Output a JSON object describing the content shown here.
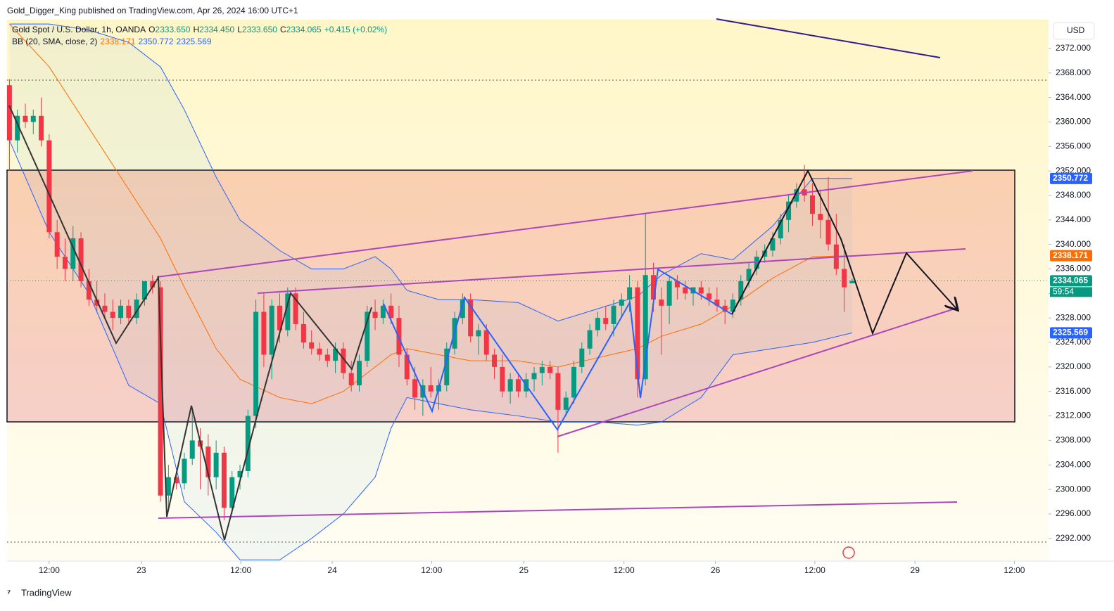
{
  "header": {
    "publisher": "Gold_Digger_King published on TradingView.com, Apr 26, 2024 16:00 UTC+1",
    "currency": "USD",
    "brand": "TradingView"
  },
  "chart_data": {
    "type": "candlestick",
    "title": "Gold Spot / U.S. Dollar, 1h, OANDA",
    "ohlc_legend": [
      {
        "key": "O",
        "value": "2333.650"
      },
      {
        "key": "H",
        "value": "2334.450"
      },
      {
        "key": "L",
        "value": "2333.650"
      },
      {
        "key": "C",
        "value": "2334.065"
      }
    ],
    "change": "+0.415 (+0.02%)",
    "indicator": {
      "name": "BB (20, SMA, close, 2)",
      "values": [
        "2338.171",
        "2350.772",
        "2325.569"
      ],
      "colors": [
        "#ff6d00",
        "#2962ff",
        "#2962ff"
      ]
    },
    "up_color": "#089981",
    "down_color": "#f23645",
    "candles": [
      [
        2366,
        2367,
        2352,
        2357
      ],
      [
        2357,
        2362,
        2355,
        2361
      ],
      [
        2361,
        2363,
        2359,
        2360
      ],
      [
        2360,
        2362,
        2358,
        2361
      ],
      [
        2361,
        2364,
        2356,
        2357
      ],
      [
        2357,
        2358,
        2341,
        2342
      ],
      [
        2342,
        2344,
        2336,
        2338
      ],
      [
        2338,
        2341,
        2334,
        2336
      ],
      [
        2336,
        2343,
        2334,
        2341
      ],
      [
        2341,
        2342,
        2333,
        2334
      ],
      [
        2334,
        2336,
        2330,
        2331
      ],
      [
        2331,
        2334,
        2329,
        2330
      ],
      [
        2330,
        2332,
        2328,
        2329
      ],
      [
        2329,
        2331,
        2326,
        2328
      ],
      [
        2328,
        2331,
        2327,
        2330
      ],
      [
        2330,
        2331,
        2327,
        2328
      ],
      [
        2328,
        2332,
        2327,
        2331
      ],
      [
        2331,
        2334,
        2330,
        2334
      ],
      [
        2334,
        2335,
        2332,
        2333
      ],
      [
        2333,
        2334,
        2298,
        2299
      ],
      [
        2299,
        2304,
        2297,
        2302
      ],
      [
        2302,
        2303,
        2300,
        2301
      ],
      [
        2301,
        2306,
        2300,
        2305
      ],
      [
        2305,
        2313,
        2304,
        2308
      ],
      [
        2308,
        2310,
        2300,
        2307
      ],
      [
        2307,
        2309,
        2299,
        2302
      ],
      [
        2302,
        2308,
        2300,
        2306
      ],
      [
        2306,
        2307,
        2295,
        2297
      ],
      [
        2297,
        2303,
        2296,
        2302
      ],
      [
        2302,
        2304,
        2300,
        2303
      ],
      [
        2303,
        2313,
        2302,
        2312
      ],
      [
        2312,
        2331,
        2310,
        2329
      ],
      [
        2329,
        2332,
        2320,
        2322
      ],
      [
        2322,
        2331,
        2318,
        2330
      ],
      [
        2330,
        2332,
        2324,
        2326
      ],
      [
        2326,
        2333,
        2325,
        2332
      ],
      [
        2332,
        2333,
        2326,
        2327
      ],
      [
        2327,
        2329,
        2323,
        2324
      ],
      [
        2324,
        2326,
        2322,
        2323
      ],
      [
        2323,
        2324,
        2321,
        2322
      ],
      [
        2322,
        2323,
        2320,
        2321
      ],
      [
        2321,
        2324,
        2319,
        2323
      ],
      [
        2323,
        2324,
        2318,
        2319
      ],
      [
        2319,
        2321,
        2316,
        2317
      ],
      [
        2317,
        2322,
        2316,
        2321
      ],
      [
        2321,
        2330,
        2320,
        2329
      ],
      [
        2329,
        2331,
        2326,
        2328
      ],
      [
        2328,
        2331,
        2327,
        2330
      ],
      [
        2330,
        2332,
        2327,
        2328
      ],
      [
        2328,
        2330,
        2320,
        2322
      ],
      [
        2322,
        2323,
        2317,
        2318
      ],
      [
        2318,
        2320,
        2313,
        2315
      ],
      [
        2315,
        2318,
        2312,
        2317
      ],
      [
        2317,
        2320,
        2315,
        2316
      ],
      [
        2316,
        2318,
        2313,
        2317
      ],
      [
        2317,
        2324,
        2316,
        2323
      ],
      [
        2323,
        2329,
        2322,
        2328
      ],
      [
        2328,
        2332,
        2327,
        2331
      ],
      [
        2331,
        2332,
        2324,
        2325
      ],
      [
        2325,
        2327,
        2322,
        2326
      ],
      [
        2326,
        2327,
        2321,
        2322
      ],
      [
        2322,
        2323,
        2318,
        2320
      ],
      [
        2320,
        2322,
        2315,
        2316
      ],
      [
        2316,
        2319,
        2314,
        2318
      ],
      [
        2318,
        2319,
        2315,
        2316
      ],
      [
        2316,
        2319,
        2315,
        2318
      ],
      [
        2318,
        2320,
        2316,
        2319
      ],
      [
        2319,
        2321,
        2317,
        2320
      ],
      [
        2320,
        2321,
        2318,
        2319
      ],
      [
        2319,
        2320,
        2306,
        2313
      ],
      [
        2313,
        2316,
        2312,
        2315
      ],
      [
        2315,
        2321,
        2314,
        2320
      ],
      [
        2320,
        2324,
        2319,
        2323
      ],
      [
        2323,
        2327,
        2322,
        2326
      ],
      [
        2326,
        2329,
        2325,
        2328
      ],
      [
        2328,
        2330,
        2326,
        2327
      ],
      [
        2327,
        2331,
        2325,
        2330
      ],
      [
        2330,
        2332,
        2328,
        2331
      ],
      [
        2331,
        2335,
        2329,
        2333
      ],
      [
        2333,
        2334,
        2315,
        2318
      ],
      [
        2318,
        2345,
        2317,
        2335
      ],
      [
        2335,
        2337,
        2329,
        2331
      ],
      [
        2331,
        2333,
        2322,
        2330
      ],
      [
        2330,
        2335,
        2327,
        2334
      ],
      [
        2334,
        2335,
        2331,
        2333
      ],
      [
        2333,
        2334,
        2331,
        2332
      ],
      [
        2332,
        2333,
        2330,
        2333
      ],
      [
        2333,
        2334,
        2331,
        2332
      ],
      [
        2332,
        2333,
        2330,
        2331
      ],
      [
        2331,
        2333,
        2329,
        2330
      ],
      [
        2330,
        2331,
        2327,
        2329
      ],
      [
        2329,
        2332,
        2328,
        2331
      ],
      [
        2331,
        2335,
        2330,
        2334
      ],
      [
        2334,
        2337,
        2333,
        2336
      ],
      [
        2336,
        2339,
        2335,
        2338
      ],
      [
        2338,
        2340,
        2337,
        2339
      ],
      [
        2339,
        2342,
        2338,
        2341
      ],
      [
        2341,
        2345,
        2340,
        2344
      ],
      [
        2344,
        2348,
        2342,
        2347
      ],
      [
        2347,
        2350,
        2346,
        2349
      ],
      [
        2349,
        2353,
        2347,
        2348
      ],
      [
        2348,
        2350,
        2343,
        2345
      ],
      [
        2345,
        2349,
        2341,
        2344
      ],
      [
        2344,
        2351,
        2339,
        2340
      ],
      [
        2340,
        2345,
        2335,
        2336
      ],
      [
        2336,
        2340,
        2329,
        2333
      ],
      [
        2333.65,
        2334.45,
        2333.65,
        2334.065
      ]
    ],
    "bands": {
      "x": [
        0,
        5,
        10,
        15,
        19,
        22,
        26,
        29,
        34,
        38,
        42,
        46,
        48,
        50,
        54,
        58,
        64,
        69,
        74,
        79,
        82,
        87,
        91,
        96,
        101,
        106
      ],
      "series": [
        {
          "color": "#2962ff",
          "values": [
            2376,
            2376,
            2375,
            2373,
            2369,
            2362,
            2351,
            2344,
            2339,
            2336,
            2336,
            2338,
            2336,
            2332.5,
            2331,
            2331,
            2330.5,
            2327.5,
            2329.5,
            2331.5,
            2335,
            2338.5,
            2337.5,
            2343,
            2350.8,
            2350.772
          ]
        },
        {
          "color": "#ff6d00",
          "values": [
            2376,
            2369,
            2359,
            2349,
            2341,
            2333,
            2323,
            2318,
            2315,
            2314,
            2316,
            2320,
            2322,
            2323,
            2322,
            2321,
            2321,
            2320,
            2321.5,
            2323,
            2325,
            2327,
            2330,
            2334.5,
            2338,
            2338.171
          ]
        },
        {
          "color": "#2962ff",
          "values": [
            2357,
            2342,
            2332,
            2317,
            2314,
            2298,
            2293,
            2288.5,
            2288.5,
            2292,
            2296,
            2302,
            2310,
            2315,
            2314,
            2313,
            2312,
            2311,
            2311,
            2310.5,
            2311,
            2315,
            2322,
            2323,
            2324,
            2325.569
          ]
        }
      ]
    },
    "ylim": [
      2288.3,
      2376.7
    ],
    "yticks": [
      {
        "value": 2292,
        "label": "2292.000"
      },
      {
        "value": 2296,
        "label": "2296.000"
      },
      {
        "value": 2300,
        "label": "2300.000"
      },
      {
        "value": 2304,
        "label": "2304.000"
      },
      {
        "value": 2308,
        "label": "2308.000"
      },
      {
        "value": 2312,
        "label": "2312.000"
      },
      {
        "value": 2316,
        "label": "2316.000"
      },
      {
        "value": 2320,
        "label": "2320.000"
      },
      {
        "value": 2324,
        "label": "2324.000"
      },
      {
        "value": 2328,
        "label": "2328.000"
      },
      {
        "value": 2332,
        "label": "2332.000"
      },
      {
        "value": 2336,
        "label": "2336.000"
      },
      {
        "value": 2340,
        "label": "2340.000"
      },
      {
        "value": 2344,
        "label": "2344.000"
      },
      {
        "value": 2348,
        "label": "2348.000"
      },
      {
        "value": 2352,
        "label": "2352.000"
      },
      {
        "value": 2356,
        "label": "2356.000"
      },
      {
        "value": 2360,
        "label": "2360.000"
      },
      {
        "value": 2364,
        "label": "2364.000"
      },
      {
        "value": 2368,
        "label": "2368.000"
      },
      {
        "value": 2372,
        "label": "2372.000"
      }
    ],
    "xlim": [
      -0.3,
      130.7
    ],
    "xticks": [
      {
        "value": 5,
        "label": "12:00"
      },
      {
        "value": 16.6,
        "label": "23"
      },
      {
        "value": 29.1,
        "label": "12:00"
      },
      {
        "value": 40.6,
        "label": "24"
      },
      {
        "value": 53.1,
        "label": "12:00"
      },
      {
        "value": 64.7,
        "label": "25"
      },
      {
        "value": 77.3,
        "label": "12:00"
      },
      {
        "value": 88.8,
        "label": "26"
      },
      {
        "value": 101.3,
        "label": "12:00"
      },
      {
        "value": 113.9,
        "label": "29"
      },
      {
        "value": 126.4,
        "label": "12:00"
      }
    ],
    "price_tags": [
      {
        "value": 2350.772,
        "color": "#2962ff"
      },
      {
        "value": 2338.171,
        "color": "#ff6d00"
      },
      {
        "value": 2334.065,
        "color": "#089981"
      },
      {
        "value": 2325.569,
        "color": "#2962ff"
      }
    ],
    "countdown": "59:54"
  }
}
